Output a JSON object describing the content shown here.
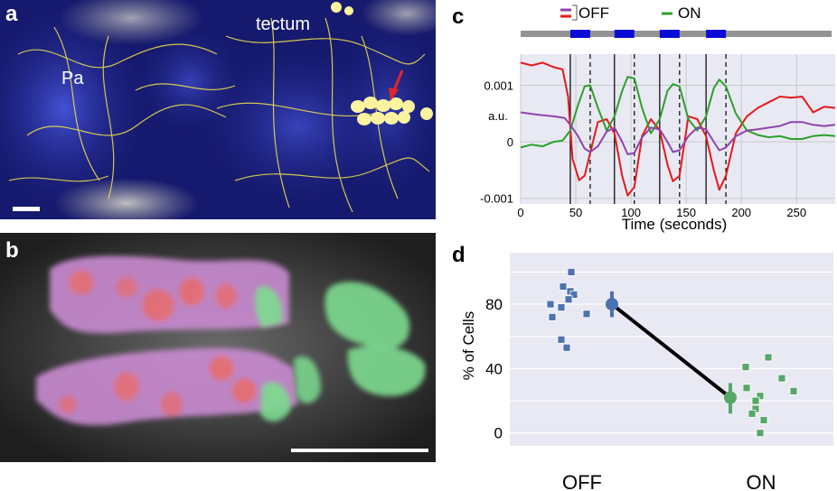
{
  "panel_a": {
    "letter": "a",
    "label_tectum": "tectum",
    "label_pa": "Pa",
    "colors": {
      "background": "#161a6e",
      "stain": "#3a44c8",
      "neurons": "#f2e44a",
      "arrow": "#e32626"
    }
  },
  "panel_b": {
    "letter": "b",
    "colors": {
      "background": "#3a3a3a",
      "off_cells": "#c98bd0",
      "off_core": "#e86a6a",
      "on_cells": "#7ddc8f",
      "scalebar": "#ffffff"
    }
  },
  "chart_data": [
    {
      "panel": "c",
      "type": "line",
      "title": "",
      "xlabel": "Time (seconds)",
      "ylabel": "a.u.",
      "xlim": [
        0,
        285
      ],
      "ylim": [
        -0.0011,
        0.00155
      ],
      "xticks": [
        0,
        50,
        100,
        150,
        200,
        250
      ],
      "yticks": [
        {
          "value": 0.001,
          "label": "0.001"
        },
        {
          "value": 0,
          "label": "0"
        },
        {
          "value": -0.001,
          "label": "-0.001"
        }
      ],
      "grid": true,
      "legend": {
        "placement": "top",
        "entries": [
          {
            "label": "OFF",
            "colors": [
              "#e41a1c",
              "#8e44ad"
            ]
          },
          {
            "label": "ON",
            "colors": [
              "#2ca02c"
            ]
          }
        ]
      },
      "stimulus_on": [
        [
          45,
          63
        ],
        [
          85,
          103
        ],
        [
          126,
          144
        ],
        [
          168,
          186
        ]
      ],
      "stimulus_colors": {
        "bar": "#939393",
        "on": "#0b0bd8"
      },
      "solid_lines_x": [
        45,
        85,
        126,
        168
      ],
      "dashed_lines_x": [
        63,
        103,
        144,
        186
      ],
      "series": [
        {
          "color": "#e41a1c",
          "x": [
            0,
            10,
            20,
            30,
            38,
            43,
            47,
            53,
            58,
            63,
            70,
            78,
            85,
            92,
            97,
            103,
            110,
            118,
            126,
            133,
            138,
            144,
            152,
            160,
            168,
            175,
            180,
            186,
            195,
            205,
            215,
            225,
            235,
            245,
            255,
            265,
            275,
            285
          ],
          "y": [
            0.0014,
            0.00135,
            0.0014,
            0.00132,
            0.00128,
            0.0008,
            -0.0003,
            -0.00068,
            -0.0006,
            -0.0002,
            0.00035,
            0.0004,
            0.00015,
            -0.0006,
            -0.00095,
            -0.0008,
            0.0001,
            0.0004,
            0.0002,
            -0.0004,
            -0.0007,
            -0.0006,
            0.00045,
            0.0004,
            0.0001,
            -0.0005,
            -0.00085,
            -0.0006,
            0.00015,
            0.00045,
            0.0006,
            0.0007,
            0.0008,
            0.00078,
            0.0008,
            0.00052,
            0.00062,
            0.0006
          ]
        },
        {
          "color": "#2ca02c",
          "x": [
            0,
            10,
            20,
            30,
            38,
            45,
            52,
            58,
            63,
            70,
            78,
            85,
            92,
            97,
            103,
            110,
            118,
            126,
            133,
            138,
            144,
            152,
            160,
            168,
            175,
            180,
            186,
            195,
            205,
            215,
            225,
            235,
            245,
            255,
            265,
            275,
            285
          ],
          "y": [
            -0.0001,
            -5e-05,
            -8e-05,
            0.0,
            2e-05,
            0.0002,
            0.00065,
            0.00098,
            0.001,
            0.0006,
            0.0002,
            0.00045,
            0.0009,
            0.00115,
            0.00112,
            0.0006,
            0.00015,
            0.0004,
            0.0009,
            0.00102,
            0.00098,
            0.0004,
            0.0002,
            0.00045,
            0.00095,
            0.0011,
            0.00098,
            0.0005,
            0.0002,
            0.00012,
            8e-05,
            0.0001,
            5e-05,
            5e-05,
            0.0001,
            0.00012,
            0.0001
          ]
        },
        {
          "color": "#8e44ad",
          "x": [
            0,
            15,
            30,
            40,
            45,
            52,
            58,
            63,
            70,
            78,
            85,
            92,
            97,
            103,
            110,
            118,
            126,
            133,
            138,
            144,
            152,
            160,
            168,
            175,
            180,
            186,
            195,
            205,
            215,
            225,
            235,
            245,
            255,
            265,
            275,
            285
          ],
          "y": [
            0.00052,
            0.00048,
            0.00045,
            0.00042,
            0.0003,
            0.0001,
            -0.00012,
            -0.00018,
            -8e-05,
            0.00018,
            0.00025,
            0.0,
            -0.00022,
            -0.0002,
            8e-05,
            0.00025,
            0.00022,
            0.0,
            -0.00018,
            -0.00015,
            0.0001,
            0.00025,
            0.00022,
            0.0,
            -0.00015,
            -0.0001,
            0.0001,
            0.0002,
            0.00022,
            0.00025,
            0.00028,
            0.00035,
            0.00035,
            0.0003,
            0.00028,
            0.0003
          ]
        }
      ]
    },
    {
      "panel": "d",
      "type": "scatter",
      "title": "",
      "xlabel": "",
      "ylabel": "% of Cells",
      "categories": [
        "OFF",
        "ON"
      ],
      "ylim": [
        -8,
        112
      ],
      "yticks": [
        0,
        40,
        80
      ],
      "grid": true,
      "series": [
        {
          "category": "OFF",
          "color": "#4c72b0",
          "points": [
            100,
            91,
            88,
            86,
            83,
            80,
            78,
            74,
            72,
            58,
            53
          ],
          "mean": 80,
          "err": [
            72,
            88
          ]
        },
        {
          "category": "ON",
          "color": "#55a868",
          "points": [
            47,
            41,
            34,
            28,
            26,
            23,
            20,
            15,
            12,
            8,
            0
          ],
          "mean": 22,
          "err": [
            12,
            31
          ]
        }
      ],
      "connector_color": "#000000"
    }
  ]
}
